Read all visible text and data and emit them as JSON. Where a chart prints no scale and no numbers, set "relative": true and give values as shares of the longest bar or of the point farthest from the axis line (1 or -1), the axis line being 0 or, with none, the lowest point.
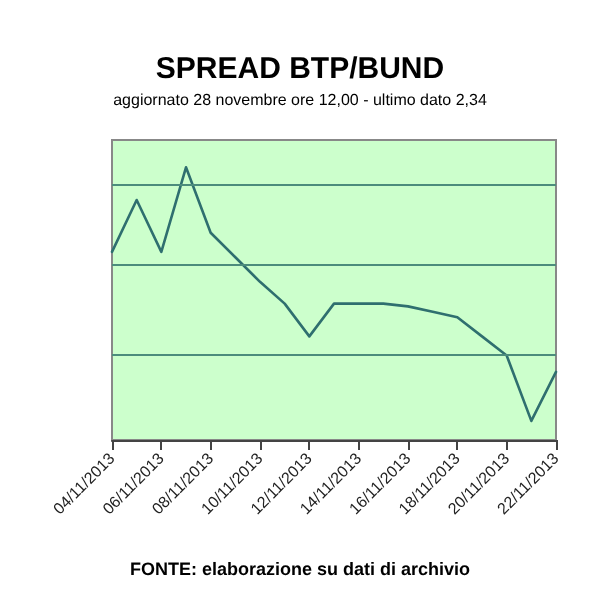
{
  "chart_data": {
    "type": "line",
    "title": "SPREAD BTP/BUND",
    "subtitle": "aggiornato 28 novembre ore 12,00 - ultimo dato 2,34",
    "annotations": [
      "FONTE: elaborazione su dati di archivio"
    ],
    "relative": true,
    "ref_lines": [
      {
        "axis": "y",
        "value": 0.94,
        "color": "#4c8c7c"
      },
      {
        "axis": "y",
        "value": 0.64,
        "color": "#4c8c7c"
      },
      {
        "axis": "y",
        "value": 0.31,
        "color": "#4c8c7c"
      }
    ],
    "marker": "none",
    "line_style": "solid",
    "categories": [
      "04/11/2013",
      null,
      "06/11/2013",
      null,
      "08/11/2013",
      null,
      "10/11/2013",
      null,
      "12/11/2013",
      null,
      "14/11/2013",
      null,
      "16/11/2013",
      null,
      "18/11/2013",
      null,
      "20/11/2013",
      null,
      "22/11/2013"
    ],
    "series": [
      {
        "color": "#2f6f6f",
        "values": [
          0.69,
          0.88,
          0.69,
          1,
          0.76,
          0.67,
          0.58,
          0.5,
          0.38,
          0.5,
          0.5,
          0.5,
          0.49,
          0.47,
          0.45,
          0.38,
          0.31,
          0.07,
          0.25
        ]
      }
    ]
  }
}
